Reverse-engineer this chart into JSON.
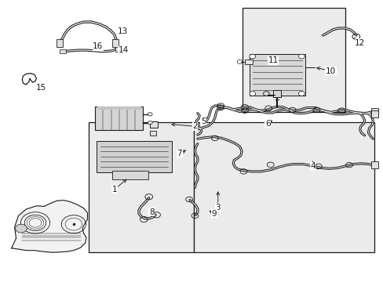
{
  "bg_color": "#ffffff",
  "line_color": "#1a1a1a",
  "box_fill": "#ebebeb",
  "lw_main": 1.0,
  "fontsize": 7.5,
  "label_positions": {
    "1": [
      0.298,
      0.338,
      0.33,
      0.368
    ],
    "2": [
      0.508,
      0.558,
      0.47,
      0.568
    ],
    "3": [
      0.568,
      0.27,
      0.568,
      0.328
    ],
    "4": [
      0.81,
      0.415,
      0.81,
      0.44
    ],
    "5": [
      0.538,
      0.57,
      0.555,
      0.585
    ],
    "6": [
      0.692,
      0.572,
      0.703,
      0.59
    ],
    "7": [
      0.475,
      0.462,
      0.49,
      0.48
    ],
    "8": [
      0.402,
      0.248,
      0.416,
      0.265
    ],
    "9": [
      0.558,
      0.245,
      0.548,
      0.26
    ],
    "10": [
      0.862,
      0.748,
      0.83,
      0.762
    ],
    "11": [
      0.712,
      0.782,
      0.698,
      0.768
    ],
    "12": [
      0.932,
      0.848,
      0.908,
      0.838
    ],
    "13": [
      0.328,
      0.89,
      0.345,
      0.872
    ],
    "14": [
      0.432,
      0.828,
      0.432,
      0.84
    ],
    "15": [
      0.11,
      0.695,
      0.098,
      0.708
    ],
    "16": [
      0.362,
      0.84,
      0.375,
      0.848
    ]
  }
}
